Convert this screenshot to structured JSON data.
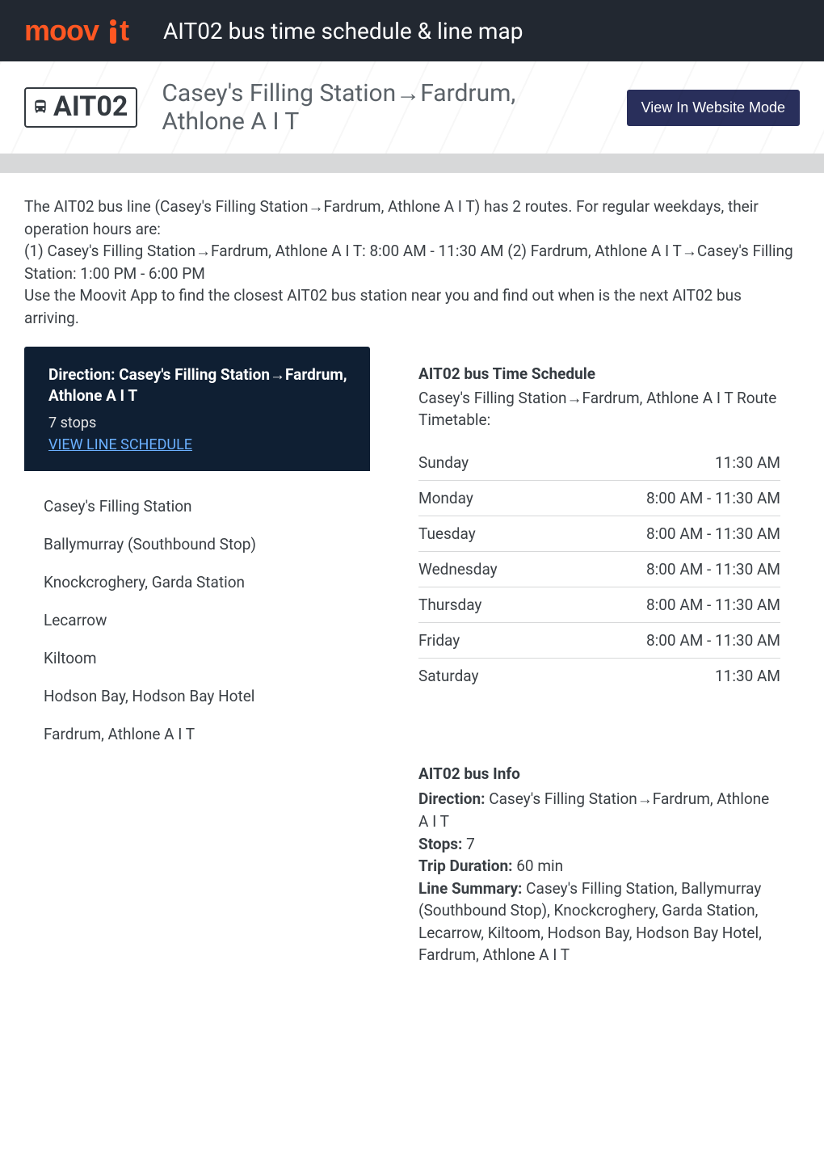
{
  "colors": {
    "topbar_bg": "#222831",
    "logo": "#ff5722",
    "badge_border": "#343a40",
    "website_btn_bg": "#292f5b",
    "graybar": "#d7d8d9",
    "direction_card_bg": "#0f1f33",
    "link": "#6bb0ff",
    "text": "#3a3f44"
  },
  "header": {
    "logo_text": "moovit",
    "title": "AIT02 bus time schedule & line map"
  },
  "route": {
    "badge": "AIT02",
    "name": "Casey's Filling Station→Fardrum, Athlone A I T",
    "website_mode_label": "View In Website Mode"
  },
  "description": "The AIT02 bus line (Casey's Filling Station→Fardrum, Athlone A I T) has 2 routes. For regular weekdays, their operation hours are:\n(1) Casey's Filling Station→Fardrum, Athlone A I T: 8:00 AM - 11:30 AM (2) Fardrum, Athlone A I T→Casey's Filling Station: 1:00 PM - 6:00 PM\nUse the Moovit App to find the closest AIT02 bus station near you and find out when is the next AIT02 bus arriving.",
  "direction_card": {
    "title": "Direction: Casey's Filling Station→Fardrum, Athlone A I T",
    "stops_count": "7 stops",
    "view_schedule_label": "VIEW LINE SCHEDULE"
  },
  "stops": [
    "Casey's Filling Station",
    "Ballymurray (Southbound Stop)",
    "Knockcroghery, Garda Station",
    "Lecarrow",
    "Kiltoom",
    "Hodson Bay, Hodson Bay Hotel",
    "Fardrum, Athlone A I T"
  ],
  "schedule_panel": {
    "title": "AIT02 bus Time Schedule",
    "subtitle": "Casey's Filling Station→Fardrum, Athlone A I T Route Timetable:",
    "rows": [
      {
        "day": "Sunday",
        "time": "11:30 AM"
      },
      {
        "day": "Monday",
        "time": "8:00 AM - 11:30 AM"
      },
      {
        "day": "Tuesday",
        "time": "8:00 AM - 11:30 AM"
      },
      {
        "day": "Wednesday",
        "time": "8:00 AM - 11:30 AM"
      },
      {
        "day": "Thursday",
        "time": "8:00 AM - 11:30 AM"
      },
      {
        "day": "Friday",
        "time": "8:00 AM - 11:30 AM"
      },
      {
        "day": "Saturday",
        "time": "11:30 AM"
      }
    ]
  },
  "info_panel": {
    "title": "AIT02 bus Info",
    "direction_label": "Direction:",
    "direction_value": "Casey's Filling Station→Fardrum, Athlone A I T",
    "stops_label": "Stops:",
    "stops_value": "7",
    "duration_label": "Trip Duration:",
    "duration_value": "60 min",
    "summary_label": "Line Summary:",
    "summary_value": "Casey's Filling Station, Ballymurray (Southbound Stop), Knockcroghery, Garda Station, Lecarrow, Kiltoom, Hodson Bay, Hodson Bay Hotel, Fardrum, Athlone A I T"
  }
}
